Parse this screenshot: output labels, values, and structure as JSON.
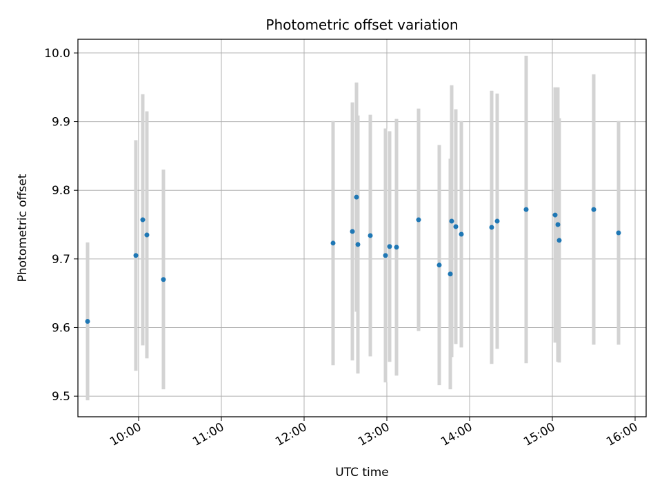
{
  "chart_data": {
    "type": "scatter",
    "title": "Photometric offset variation",
    "xlabel": "UTC time",
    "ylabel": "Photometric offset",
    "x_tick_labels": [
      "10:00",
      "11:00",
      "12:00",
      "13:00",
      "14:00",
      "15:00",
      "16:00"
    ],
    "y_tick_labels": [
      "9.5",
      "9.6",
      "9.7",
      "9.8",
      "9.9",
      "10.0"
    ],
    "ylim": [
      9.47,
      10.02
    ],
    "xlim": [
      "09:16",
      "16:08"
    ],
    "grid": true,
    "marker_color": "#1f77b4",
    "errorbar_color": "#d3d3d3",
    "points": [
      {
        "time": "09:23",
        "value": 9.609,
        "error": 0.115
      },
      {
        "time": "09:58",
        "value": 9.705,
        "error": 0.168
      },
      {
        "time": "10:03",
        "value": 9.757,
        "error": 0.183
      },
      {
        "time": "10:06",
        "value": 9.735,
        "error": 0.18
      },
      {
        "time": "10:18",
        "value": 9.67,
        "error": 0.16
      },
      {
        "time": "12:21",
        "value": 9.723,
        "error": 0.178
      },
      {
        "time": "12:35",
        "value": 9.74,
        "error": 0.188
      },
      {
        "time": "12:38",
        "value": 9.79,
        "error": 0.167
      },
      {
        "time": "12:39",
        "value": 9.721,
        "error": 0.188
      },
      {
        "time": "12:48",
        "value": 9.734,
        "error": 0.176
      },
      {
        "time": "12:59",
        "value": 9.705,
        "error": 0.185
      },
      {
        "time": "13:02",
        "value": 9.718,
        "error": 0.168
      },
      {
        "time": "13:07",
        "value": 9.717,
        "error": 0.187
      },
      {
        "time": "13:23",
        "value": 9.757,
        "error": 0.162
      },
      {
        "time": "13:38",
        "value": 9.691,
        "error": 0.175
      },
      {
        "time": "13:46",
        "value": 9.678,
        "error": 0.168
      },
      {
        "time": "13:47",
        "value": 9.755,
        "error": 0.198
      },
      {
        "time": "13:50",
        "value": 9.747,
        "error": 0.171
      },
      {
        "time": "13:54",
        "value": 9.736,
        "error": 0.165
      },
      {
        "time": "14:16",
        "value": 9.746,
        "error": 0.199
      },
      {
        "time": "14:20",
        "value": 9.755,
        "error": 0.186
      },
      {
        "time": "14:41",
        "value": 9.772,
        "error": 0.224
      },
      {
        "time": "15:02",
        "value": 9.764,
        "error": 0.186
      },
      {
        "time": "15:04",
        "value": 9.75,
        "error": 0.2
      },
      {
        "time": "15:05",
        "value": 9.727,
        "error": 0.178
      },
      {
        "time": "15:30",
        "value": 9.772,
        "error": 0.197
      },
      {
        "time": "15:48",
        "value": 9.738,
        "error": 0.163
      }
    ]
  }
}
